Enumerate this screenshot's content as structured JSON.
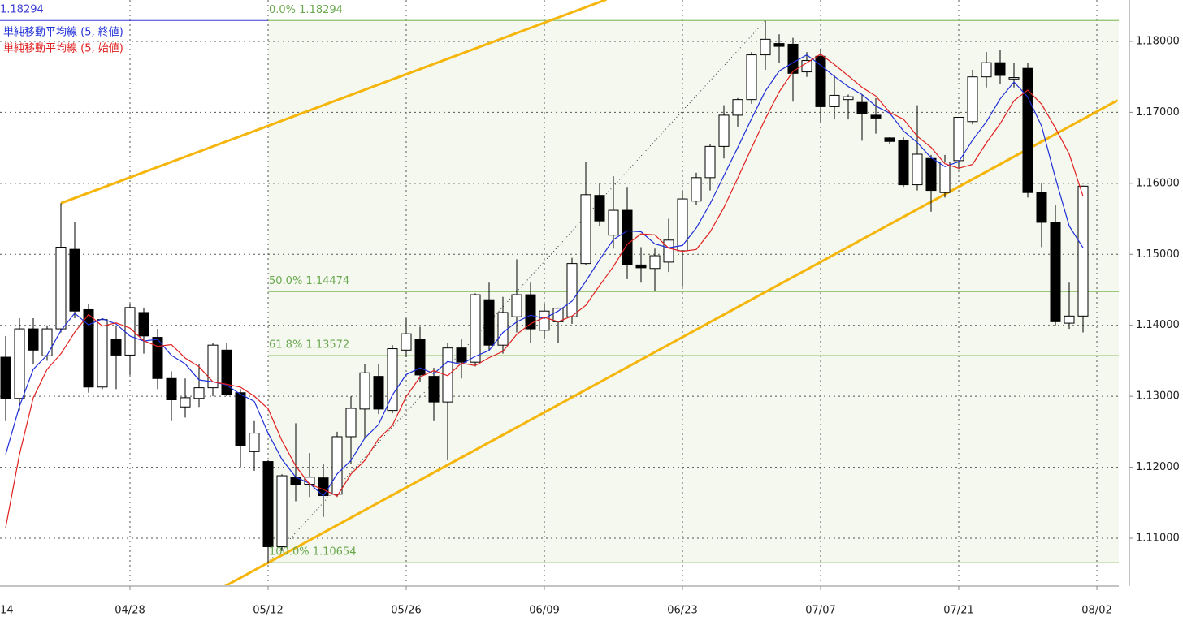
{
  "chart_data": {
    "type": "candlestick",
    "categories": [
      "14",
      null,
      null,
      null,
      null,
      null,
      null,
      null,
      null,
      null,
      "04/28",
      null,
      null,
      null,
      null,
      null,
      null,
      null,
      null,
      null,
      "05/12",
      null,
      null,
      null,
      null,
      null,
      null,
      null,
      null,
      null,
      "05/26",
      null,
      null,
      null,
      null,
      null,
      null,
      null,
      null,
      null,
      "06/09",
      null,
      null,
      null,
      null,
      null,
      null,
      null,
      null,
      null,
      "06/23",
      null,
      null,
      null,
      null,
      null,
      null,
      null,
      null,
      null,
      "07/07",
      null,
      null,
      null,
      null,
      null,
      null,
      null,
      null,
      null,
      "07/21",
      null,
      null,
      null,
      null,
      null,
      null,
      null,
      null,
      null,
      "08/02"
    ],
    "open": [
      null,
      1.1355,
      1.1297,
      1.1395,
      1.1357,
      1.1395,
      1.1507,
      1.1422,
      1.1313,
      1.138,
      1.1358,
      1.1418,
      1.1383,
      1.1325,
      1.1285,
      1.1297,
      1.1312,
      1.1365,
      1.1305,
      1.1222,
      1.1208,
      1.1088,
      1.1186,
      1.1176,
      1.1185,
      1.1162,
      1.1243,
      1.1282,
      1.1328,
      1.128,
      1.1365,
      1.138,
      1.1328,
      1.1292,
      1.1368,
      1.1348,
      1.1436,
      1.1372,
      1.1412,
      1.1443,
      1.1393,
      1.1405,
      1.1412,
      1.1487,
      1.1583,
      1.1527,
      1.1562,
      1.1485,
      1.148,
      1.1489,
      1.1505,
      1.1575,
      1.1608,
      1.1652,
      1.1696,
      1.1718,
      1.1781,
      1.1797,
      1.1796,
      1.1757,
      1.1779,
      1.1708,
      1.1718,
      1.1714,
      1.1696,
      1.1664,
      1.166,
      1.1598,
      1.1635,
      1.1587,
      1.1632,
      1.1687,
      1.175,
      1.177,
      1.1747,
      1.1762,
      1.1587,
      1.1545,
      1.1403,
      1.1413,
      null
    ],
    "high": [
      null,
      1.1385,
      1.141,
      1.141,
      1.14,
      1.1572,
      1.1545,
      1.143,
      1.141,
      1.14,
      1.143,
      1.1425,
      1.1395,
      1.1335,
      1.1325,
      1.1345,
      1.1375,
      1.1375,
      1.131,
      1.1265,
      1.121,
      1.119,
      1.1262,
      1.122,
      1.1205,
      1.125,
      1.13,
      1.1345,
      1.1345,
      1.1372,
      1.141,
      1.1398,
      1.134,
      1.1375,
      1.138,
      1.1445,
      1.146,
      1.144,
      1.1493,
      1.146,
      1.143,
      1.1425,
      1.1495,
      1.163,
      1.16,
      1.161,
      1.1595,
      1.151,
      1.1508,
      1.155,
      1.159,
      1.1615,
      1.1655,
      1.171,
      1.172,
      1.1785,
      1.1829,
      1.181,
      1.1805,
      1.1785,
      1.179,
      1.1752,
      1.1725,
      1.1725,
      1.172,
      1.1665,
      1.1665,
      1.171,
      1.164,
      1.164,
      1.169,
      1.176,
      1.1785,
      1.1788,
      1.177,
      1.177,
      1.16,
      1.157,
      1.146,
      1.1597,
      null
    ],
    "low": [
      null,
      1.1265,
      1.128,
      1.1345,
      1.135,
      1.139,
      1.141,
      1.1305,
      1.131,
      1.131,
      1.133,
      1.136,
      1.131,
      1.1265,
      1.127,
      1.1285,
      1.13,
      1.13,
      1.12,
      1.1195,
      1.1065,
      1.1082,
      1.1152,
      1.1158,
      1.113,
      1.1158,
      1.1205,
      1.124,
      1.1275,
      1.1276,
      1.1355,
      1.132,
      1.1265,
      1.121,
      1.1325,
      1.1342,
      1.1365,
      1.136,
      1.139,
      1.1375,
      1.138,
      1.1375,
      1.1402,
      1.1485,
      1.154,
      1.1508,
      1.1465,
      1.146,
      1.1448,
      1.1475,
      1.1455,
      1.157,
      1.159,
      1.1635,
      1.168,
      1.1712,
      1.176,
      1.177,
      1.1715,
      1.175,
      1.1685,
      1.169,
      1.169,
      1.166,
      1.167,
      1.1655,
      1.1595,
      1.159,
      1.156,
      1.158,
      1.162,
      1.1683,
      1.1735,
      1.174,
      1.1735,
      1.158,
      1.151,
      1.14,
      1.1395,
      1.139,
      null
    ],
    "close": [
      null,
      1.1297,
      1.1395,
      1.1365,
      1.1395,
      1.151,
      1.142,
      1.1313,
      1.1408,
      1.1358,
      1.1425,
      1.1385,
      1.1325,
      1.1295,
      1.1298,
      1.1312,
      1.1372,
      1.1302,
      1.123,
      1.1248,
      1.1088,
      1.1188,
      1.1176,
      1.1186,
      1.116,
      1.1243,
      1.1283,
      1.1333,
      1.1282,
      1.1367,
      1.1388,
      1.133,
      1.1292,
      1.1368,
      1.1348,
      1.1443,
      1.1372,
      1.1418,
      1.1443,
      1.1395,
      1.142,
      1.1424,
      1.1487,
      1.1584,
      1.1547,
      1.1562,
      1.1485,
      1.1481,
      1.1498,
      1.152,
      1.1578,
      1.1608,
      1.1652,
      1.1696,
      1.1718,
      1.1781,
      1.1803,
      1.1793,
      1.1755,
      1.1773,
      1.1708,
      1.1724,
      1.1722,
      1.1698,
      1.1692,
      1.1659,
      1.1598,
      1.1641,
      1.159,
      1.163,
      1.1693,
      1.175,
      1.177,
      1.1752,
      1.1749,
      1.1587,
      1.1545,
      1.1405,
      1.1413,
      1.1596,
      null
    ],
    "up_color": "#ffffff",
    "down_color": "#000000",
    "series": [
      {
        "name": "単純移動平均線 (5, 終値)",
        "color": "#1f2fd8",
        "values": [
          null,
          1.1218,
          1.1286,
          1.1338,
          1.1358,
          1.13924,
          1.1417,
          1.14006,
          1.14092,
          1.14018,
          1.13848,
          1.13778,
          1.13802,
          1.13576,
          1.13456,
          1.1323,
          1.13204,
          1.13158,
          1.13028,
          1.12928,
          1.1248,
          1.12112,
          1.1186,
          1.11772,
          1.11596,
          1.11906,
          1.12096,
          1.1241,
          1.12602,
          1.13016,
          1.13306,
          1.134,
          1.13318,
          1.1349,
          1.13452,
          1.13562,
          1.13646,
          1.13898,
          1.14048,
          1.14142,
          1.14096,
          1.142,
          1.14338,
          1.1462,
          1.14924,
          1.15208,
          1.1533,
          1.15318,
          1.15146,
          1.15092,
          1.15124,
          1.1537,
          1.15712,
          1.16108,
          1.16504,
          1.1691,
          1.173,
          1.17582,
          1.177,
          1.1781,
          1.17664,
          1.17506,
          1.17364,
          1.1725,
          1.17088,
          1.1699,
          1.16738,
          1.16576,
          1.1636,
          1.16236,
          1.16304,
          1.16608,
          1.16866,
          1.1719,
          1.17428,
          1.17216,
          1.16806,
          1.16076,
          1.15398,
          1.15092,
          null
        ]
      },
      {
        "name": "単純移動平均線 (5, 始値)",
        "color": "#e02020",
        "values": [
          null,
          1.1115,
          1.1218,
          1.1298,
          1.1338,
          1.13598,
          1.13902,
          1.14152,
          1.13988,
          1.14034,
          1.1396,
          1.13782,
          1.13704,
          1.13728,
          1.13538,
          1.13416,
          1.13204,
          1.13168,
          1.13128,
          1.13002,
          1.12824,
          1.12376,
          1.12018,
          1.1176,
          1.11686,
          1.11594,
          1.11904,
          1.12096,
          1.124,
          1.1259,
          1.12996,
          1.1327,
          1.13362,
          1.1329,
          1.13466,
          1.13432,
          1.13544,
          1.13632,
          1.13872,
          1.14022,
          1.14112,
          1.1405,
          1.1413,
          1.1428,
          1.1456,
          1.14828,
          1.15142,
          1.15288,
          1.15274,
          1.15086,
          1.15042,
          1.15068,
          1.15314,
          1.15658,
          1.16072,
          1.16498,
          1.1691,
          1.17288,
          1.17576,
          1.17698,
          1.1782,
          1.17674,
          1.17516,
          1.17352,
          1.1723,
          1.17,
          1.16904,
          1.16664,
          1.16506,
          1.16276,
          1.16212,
          1.16266,
          1.1657,
          1.1684,
          1.17162,
          1.17314,
          1.17114,
          1.1678,
          1.16412,
          1.15818,
          null
        ]
      }
    ],
    "ylim": [
      1.10348,
      1.18583
    ],
    "yticks": [
      {
        "value": 1.11,
        "label": "1.11000"
      },
      {
        "value": 1.12,
        "label": "1.12000"
      },
      {
        "value": 1.13,
        "label": "1.13000"
      },
      {
        "value": 1.14,
        "label": "1.14000"
      },
      {
        "value": 1.15,
        "label": "1.15000"
      },
      {
        "value": 1.16,
        "label": "1.16000"
      },
      {
        "value": 1.17,
        "label": "1.17000"
      },
      {
        "value": 1.18,
        "label": "1.18000"
      }
    ],
    "grid": true,
    "price_line": 1.18294,
    "price_line_color": "#3b3bd6",
    "fib_levels": [
      {
        "value": 1.18294,
        "label": "0.0% 1.18294"
      },
      {
        "value": 1.14474,
        "label": "50.0% 1.14474"
      },
      {
        "value": 1.13572,
        "label": "61.8% 1.13572"
      },
      {
        "value": 1.10654,
        "label": "100.0% 1.10654"
      }
    ],
    "fib_color": "#8cc26a",
    "fib_text_color": "#6aa84f",
    "fib_fill": "#f4f8ee",
    "fib_anchor": {
      "x": [
        20,
        56
      ],
      "y": [
        1.10654,
        1.18294
      ]
    },
    "trendline_color": "#f5b50a",
    "trendlines": [
      {
        "x": [
          5,
          44.5
        ],
        "y": [
          1.1572,
          1.1859
        ]
      },
      {
        "x": [
          16,
          81.5
        ],
        "y": [
          1.1023,
          1.1717
        ]
      }
    ]
  }
}
